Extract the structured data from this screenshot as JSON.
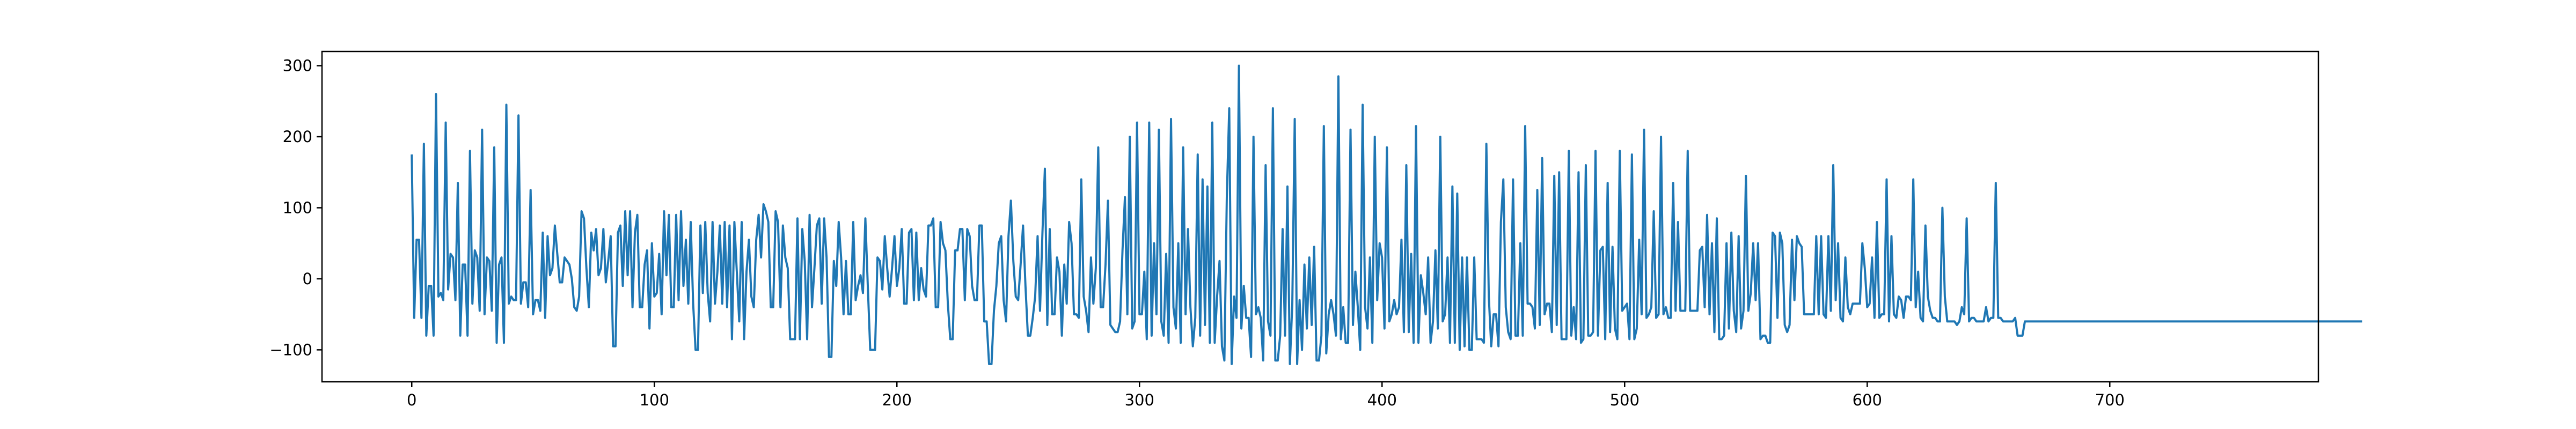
{
  "chart_data": {
    "type": "line",
    "title": "",
    "xlabel": "",
    "ylabel": "",
    "xlim": [
      -37,
      786
    ],
    "ylim": [
      -145,
      320
    ],
    "xticks": [
      0,
      100,
      200,
      300,
      400,
      500,
      600,
      700
    ],
    "yticks": [
      -100,
      0,
      100,
      200,
      300
    ],
    "grid": false,
    "legend": "none",
    "colors": {
      "line": "#1f77b4",
      "axes": "#000000",
      "background": "#ffffff"
    },
    "series": [
      {
        "x_start": 0,
        "x_step": 1,
        "values": [
          175,
          -55,
          55,
          55,
          -55,
          190,
          -80,
          -10,
          -10,
          -80,
          260,
          -25,
          -20,
          -30,
          220,
          -15,
          35,
          30,
          -30,
          135,
          -80,
          20,
          20,
          -80,
          180,
          -35,
          40,
          30,
          -45,
          210,
          -50,
          30,
          25,
          -45,
          185,
          -90,
          20,
          30,
          -90,
          245,
          -35,
          -25,
          -30,
          -30,
          230,
          -35,
          -5,
          -5,
          -40,
          125,
          -50,
          -30,
          -30,
          -45,
          65,
          -55,
          60,
          5,
          15,
          75,
          35,
          -5,
          -5,
          30,
          25,
          20,
          0,
          -40,
          -45,
          -25,
          95,
          85,
          15,
          -40,
          65,
          40,
          70,
          5,
          15,
          70,
          -5,
          25,
          60,
          -95,
          -95,
          65,
          75,
          -10,
          95,
          5,
          95,
          -40,
          65,
          90,
          -40,
          -40,
          20,
          40,
          -70,
          50,
          -25,
          -20,
          35,
          -50,
          95,
          5,
          90,
          -40,
          -40,
          90,
          -30,
          95,
          -10,
          55,
          -35,
          80,
          -35,
          -100,
          -100,
          75,
          -20,
          80,
          -20,
          -60,
          80,
          -35,
          10,
          75,
          -35,
          80,
          -40,
          75,
          -85,
          80,
          10,
          -60,
          80,
          -85,
          10,
          55,
          -25,
          -40,
          55,
          90,
          30,
          105,
          95,
          80,
          -40,
          -40,
          95,
          80,
          -40,
          75,
          30,
          15,
          -85,
          -85,
          -85,
          85,
          -85,
          70,
          25,
          -85,
          90,
          -40,
          15,
          75,
          85,
          -35,
          85,
          30,
          -110,
          -110,
          25,
          -10,
          80,
          30,
          -50,
          25,
          -50,
          -50,
          80,
          -30,
          -10,
          5,
          -20,
          85,
          -10,
          -100,
          -100,
          -100,
          30,
          25,
          -15,
          60,
          15,
          -25,
          15,
          60,
          -10,
          15,
          70,
          -35,
          -35,
          65,
          70,
          -30,
          65,
          -30,
          15,
          -15,
          -25,
          75,
          75,
          85,
          -40,
          -40,
          80,
          50,
          40,
          -35,
          -85,
          -85,
          40,
          40,
          70,
          70,
          -30,
          70,
          60,
          -10,
          -30,
          -30,
          75,
          75,
          -60,
          -60,
          -120,
          -120,
          -45,
          -10,
          50,
          60,
          -30,
          -60,
          60,
          110,
          25,
          -25,
          -30,
          20,
          75,
          -10,
          -80,
          -80,
          -55,
          -25,
          60,
          -45,
          65,
          155,
          -65,
          70,
          -50,
          -50,
          30,
          10,
          -80,
          20,
          -35,
          80,
          50,
          -50,
          -50,
          -55,
          140,
          -25,
          -45,
          -75,
          30,
          -35,
          15,
          185,
          -40,
          -40,
          20,
          110,
          -65,
          -70,
          -75,
          -75,
          -60,
          40,
          115,
          -50,
          200,
          -70,
          -60,
          220,
          -50,
          -50,
          10,
          -85,
          220,
          -80,
          50,
          -50,
          210,
          -60,
          -80,
          35,
          -90,
          225,
          -40,
          -70,
          50,
          -90,
          185,
          -50,
          70,
          -40,
          -95,
          -55,
          175,
          -80,
          140,
          -65,
          130,
          -90,
          220,
          -90,
          -25,
          25,
          -95,
          -115,
          115,
          240,
          -120,
          -25,
          -55,
          300,
          -70,
          -10,
          -55,
          -55,
          -110,
          200,
          -50,
          -40,
          -55,
          -115,
          160,
          -60,
          -80,
          240,
          -115,
          -115,
          -80,
          70,
          -80,
          130,
          -120,
          -35,
          225,
          -120,
          -30,
          -100,
          20,
          -70,
          30,
          -65,
          45,
          -115,
          -115,
          -80,
          215,
          -105,
          -50,
          -30,
          -50,
          -80,
          285,
          -85,
          -40,
          -90,
          -90,
          210,
          -65,
          10,
          -40,
          -100,
          245,
          -40,
          -70,
          30,
          -90,
          200,
          -30,
          50,
          30,
          -70,
          185,
          -60,
          -50,
          -30,
          -50,
          -40,
          55,
          -75,
          160,
          -75,
          35,
          -90,
          215,
          -90,
          5,
          -20,
          -50,
          30,
          -90,
          -60,
          40,
          -70,
          200,
          -60,
          -50,
          30,
          -90,
          130,
          -90,
          120,
          -100,
          30,
          -95,
          30,
          -100,
          -100,
          30,
          -85,
          -85,
          -85,
          -90,
          190,
          -25,
          -95,
          -50,
          -50,
          -95,
          80,
          140,
          -40,
          -75,
          -85,
          140,
          -80,
          -80,
          50,
          -80,
          215,
          -35,
          -35,
          -40,
          -70,
          125,
          -65,
          170,
          -50,
          -35,
          -35,
          -75,
          145,
          -65,
          150,
          -85,
          -85,
          -85,
          180,
          -80,
          -40,
          -85,
          150,
          -90,
          -85,
          160,
          -80,
          -80,
          -75,
          180,
          -80,
          40,
          45,
          -85,
          135,
          -75,
          45,
          -70,
          -85,
          180,
          -45,
          -40,
          -35,
          -85,
          175,
          -85,
          -70,
          55,
          -50,
          210,
          -55,
          -50,
          -40,
          95,
          -55,
          -50,
          200,
          -50,
          -40,
          -55,
          -55,
          135,
          -45,
          80,
          -45,
          -45,
          -45,
          180,
          -45,
          -45,
          -45,
          -45,
          40,
          45,
          -40,
          90,
          -50,
          50,
          -75,
          85,
          -85,
          -85,
          -80,
          50,
          -70,
          65,
          -45,
          -75,
          60,
          -70,
          -45,
          145,
          -45,
          -20,
          50,
          -30,
          50,
          -85,
          -80,
          -80,
          -90,
          -90,
          65,
          60,
          -55,
          65,
          50,
          -65,
          -75,
          -65,
          55,
          -30,
          60,
          50,
          45,
          -50,
          -50,
          -50,
          -50,
          -50,
          60,
          -50,
          60,
          -50,
          -55,
          60,
          -45,
          160,
          -30,
          50,
          -55,
          -60,
          30,
          -40,
          -50,
          -35,
          -35,
          -35,
          -35,
          50,
          15,
          -40,
          -35,
          30,
          -55,
          80,
          -55,
          -50,
          -50,
          140,
          -60,
          60,
          -50,
          -55,
          -25,
          -30,
          -55,
          -25,
          -25,
          -30,
          140,
          -40,
          10,
          -55,
          -60,
          75,
          -25,
          -45,
          -55,
          -55,
          -60,
          -60,
          100,
          -25,
          -60,
          -60,
          -60,
          -60,
          -65,
          -60,
          -40,
          -50,
          85,
          -60,
          -55,
          -55,
          -60,
          -60,
          -60,
          -60,
          -40,
          -60,
          -55,
          -55,
          135,
          -55,
          -55,
          -60,
          -60,
          -60,
          -60,
          -60,
          -55,
          -80,
          -80,
          -80,
          -60,
          -60,
          -60,
          -60,
          -60,
          -60,
          -60,
          -60,
          -60,
          -60,
          -60,
          -60,
          -60,
          -60,
          -60,
          -60,
          -60,
          -60,
          -60,
          -60,
          -60,
          -60,
          -60,
          -60,
          -60,
          -60,
          -60,
          -60,
          -60,
          -60,
          -60,
          -60,
          -60,
          -60,
          -60,
          -60,
          -60,
          -60,
          -60,
          -60,
          -60,
          -60,
          -60,
          -60,
          -60,
          -60,
          -60,
          -60,
          -60,
          -60,
          -60,
          -60,
          -60,
          -60,
          -60,
          -60,
          -60,
          -60,
          -60,
          -60,
          -60,
          -60,
          -60,
          -60,
          -60,
          -60,
          -60,
          -60,
          -60,
          -60,
          -60,
          -60,
          -60,
          -60,
          -60,
          -60,
          -60,
          -60,
          -60,
          -60,
          -60,
          -60,
          -60,
          -60,
          -60,
          -60,
          -60,
          -60,
          -60,
          -60,
          -60,
          -60,
          -60,
          -60,
          -60,
          -60,
          -60,
          -60,
          -60,
          -60,
          -60,
          -60,
          -60,
          -60,
          -60,
          -60,
          -60,
          -60,
          -60,
          -60,
          -60,
          -60,
          -60,
          -60,
          -60,
          -60,
          -60,
          -60,
          -60,
          -60,
          -60,
          -60,
          -60,
          -60,
          -60,
          -60,
          -60,
          -60,
          -60,
          -60,
          -60,
          -60,
          -60,
          -60,
          -60,
          -60,
          -60,
          -60,
          -60,
          -60
        ]
      }
    ]
  }
}
